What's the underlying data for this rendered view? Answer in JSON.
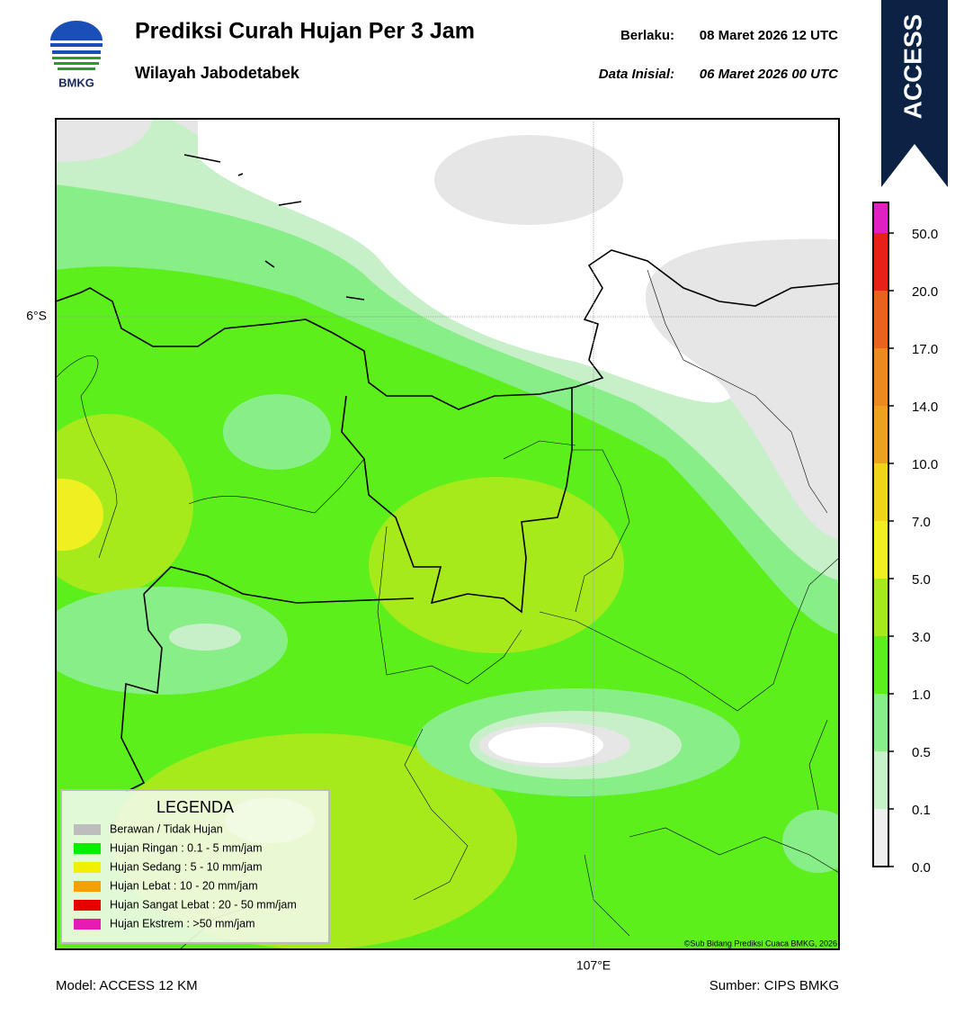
{
  "header": {
    "logo_text": "BMKG",
    "title": "Prediksi Curah Hujan Per 3 Jam",
    "subtitle": "Wilayah Jabodetabek",
    "valid_label": "Berlaku:",
    "valid_value": "08 Maret 2026 12 UTC",
    "init_label": "Data Inisial:",
    "init_value": "06 Maret 2026 00 UTC",
    "model_badge": "ACCESS"
  },
  "map": {
    "lat_label": "6°S",
    "lon_label": "107°E",
    "credit": "©Sub Bidang Prediksi Cuaca BMKG, 2026"
  },
  "legend": {
    "title": "LEGENDA",
    "items": [
      {
        "label": "Berawan / Tidak Hujan",
        "color": "#bdbdbd"
      },
      {
        "label": "Hujan Ringan : 0.1 - 5 mm/jam",
        "color": "#00f000"
      },
      {
        "label": "Hujan Sedang : 5 - 10 mm/jam",
        "color": "#f0f000"
      },
      {
        "label": "Hujan Lebat : 10 - 20 mm/jam",
        "color": "#f5a000"
      },
      {
        "label": "Hujan Sangat Lebat : 20 - 50 mm/jam",
        "color": "#e80000"
      },
      {
        "label": "Hujan Ekstrem : >50 mm/jam",
        "color": "#e81ab4"
      }
    ]
  },
  "colorbar": {
    "labels": [
      "0.0",
      "0.1",
      "0.5",
      "1.0",
      "3.0",
      "5.0",
      "7.0",
      "10.0",
      "14.0",
      "17.0",
      "20.0",
      "50.0"
    ],
    "colors": [
      "#efefef",
      "#c8f2c8",
      "#88ee88",
      "#5cef1c",
      "#a6ea1c",
      "#f0f020",
      "#f0d418",
      "#eca21e",
      "#ec8a22",
      "#e8641e",
      "#e82018",
      "#e020c0"
    ]
  },
  "footer": {
    "model": "Model: ACCESS 12 KM",
    "source": "Sumber: CIPS BMKG"
  }
}
